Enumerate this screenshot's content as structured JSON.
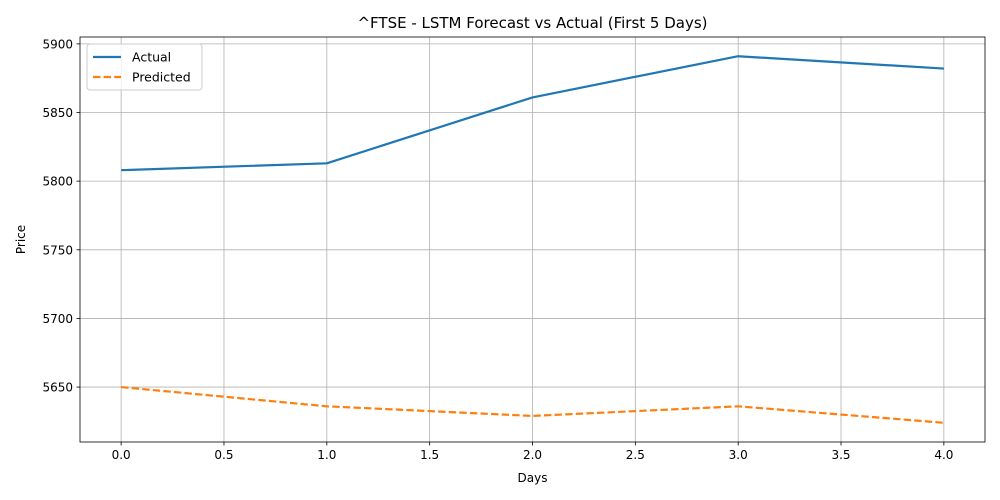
{
  "chart_data": {
    "type": "line",
    "title": "^FTSE - LSTM Forecast vs Actual (First 5 Days)",
    "xlabel": "Days",
    "ylabel": "Price",
    "x": [
      0,
      1,
      2,
      3,
      4
    ],
    "xlim": [
      -0.2,
      4.2
    ],
    "ylim": [
      5610,
      5905
    ],
    "xticks": [
      0,
      0.5,
      1,
      1.5,
      2,
      2.5,
      3,
      3.5,
      4
    ],
    "xtick_labels": [
      "0.0",
      "0.5",
      "1.0",
      "1.5",
      "2.0",
      "2.5",
      "3.0",
      "3.5",
      "4.0"
    ],
    "yticks": [
      5650,
      5700,
      5750,
      5800,
      5850,
      5900
    ],
    "ytick_labels": [
      "5650",
      "5700",
      "5750",
      "5800",
      "5850",
      "5900"
    ],
    "grid": true,
    "legend_position": "upper-left",
    "series": [
      {
        "name": "Actual",
        "values": [
          5808,
          5813,
          5861,
          5891,
          5882
        ],
        "color": "#1f77b4",
        "style": "solid"
      },
      {
        "name": "Predicted",
        "values": [
          5650,
          5636,
          5629,
          5636,
          5624
        ],
        "color": "#ff7f0e",
        "style": "dashed"
      }
    ]
  }
}
